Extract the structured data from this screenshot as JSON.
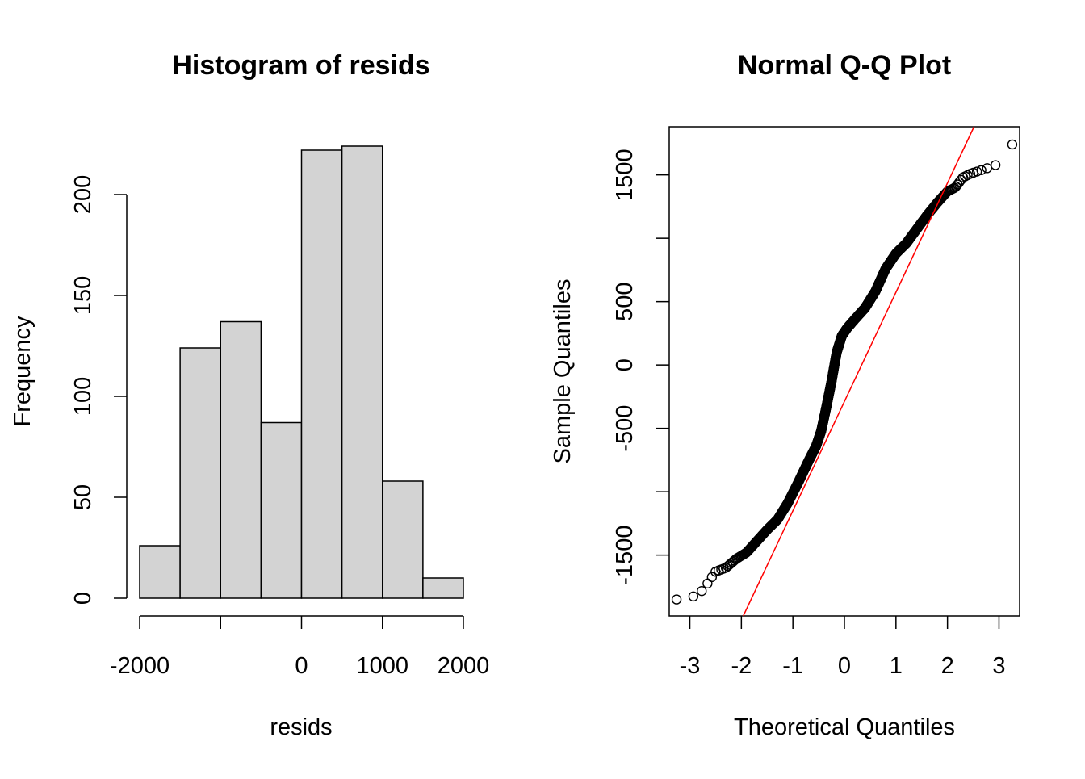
{
  "chart_data": [
    {
      "type": "bar",
      "title": "Histogram of resids",
      "xlabel": "resids",
      "ylabel": "Frequency",
      "bins": [
        {
          "from": -2000,
          "to": -1500,
          "count": 26
        },
        {
          "from": -1500,
          "to": -1000,
          "count": 124
        },
        {
          "from": -1000,
          "to": -500,
          "count": 137
        },
        {
          "from": -500,
          "to": 0,
          "count": 87
        },
        {
          "from": 0,
          "to": 500,
          "count": 222
        },
        {
          "from": 500,
          "to": 1000,
          "count": 224
        },
        {
          "from": 1000,
          "to": 1500,
          "count": 58
        },
        {
          "from": 1500,
          "to": 2000,
          "count": 10
        }
      ],
      "xlim": [
        -2000,
        2000
      ],
      "ylim": [
        0,
        224
      ],
      "x_ticks": [
        -2000,
        -1000,
        0,
        1000,
        2000
      ],
      "x_tick_labels": [
        "-2000",
        "",
        "0",
        "1000",
        "2000"
      ],
      "y_ticks": [
        0,
        50,
        100,
        150,
        200
      ],
      "y_tick_labels": [
        "0",
        "50",
        "100",
        "150",
        "200"
      ],
      "bar_color": "#d3d3d3",
      "grid": false
    },
    {
      "type": "scatter",
      "title": "Normal Q-Q Plot",
      "xlabel": "Theoretical Quantiles",
      "ylabel": "Sample Quantiles",
      "xlim": [
        -3.4,
        3.4
      ],
      "ylim": [
        -1980,
        1880
      ],
      "x_ticks": [
        -3,
        -2,
        -1,
        0,
        1,
        2,
        3
      ],
      "x_tick_labels": [
        "-3",
        "-2",
        "-1",
        "0",
        "1",
        "2",
        "3"
      ],
      "y_ticks": [
        -2000,
        -1500,
        -1000,
        -500,
        0,
        500,
        1000,
        1500
      ],
      "y_tick_labels": [
        "",
        "-1500",
        "",
        "-500",
        "0",
        "500",
        "",
        "1500"
      ],
      "reference_line": {
        "slope": 862,
        "intercept": -288,
        "color": "#ff0000"
      },
      "qq_curve": {
        "x": [
          -3.2,
          -2.95,
          -2.8,
          -2.65,
          -2.5,
          -2.3,
          -2.1,
          -1.9,
          -1.7,
          -1.5,
          -1.3,
          -1.1,
          -0.9,
          -0.7,
          -0.55,
          -0.45,
          -0.35,
          -0.25,
          -0.15,
          -0.05,
          0.05,
          0.2,
          0.4,
          0.6,
          0.8,
          1.0,
          1.2,
          1.4,
          1.6,
          1.8,
          2.0,
          2.15,
          2.3,
          2.45,
          2.6,
          2.75,
          2.95,
          3.2
        ],
        "y": [
          -1850,
          -1830,
          -1800,
          -1720,
          -1630,
          -1600,
          -1530,
          -1480,
          -1390,
          -1300,
          -1220,
          -1090,
          -930,
          -760,
          -640,
          -520,
          -330,
          -130,
          100,
          230,
          290,
          360,
          450,
          580,
          760,
          880,
          960,
          1070,
          1180,
          1280,
          1370,
          1400,
          1480,
          1510,
          1530,
          1550,
          1580,
          1740
        ]
      },
      "point_color": "#000000",
      "grid": false
    }
  ]
}
